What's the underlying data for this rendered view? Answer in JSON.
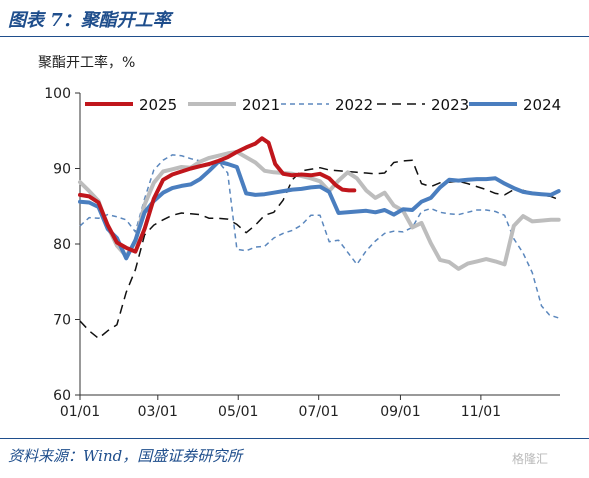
{
  "header": {
    "title": "图表 7：聚酯开工率"
  },
  "footer": {
    "source": "资料来源：Wind，国盛证券研究所",
    "watermark": "格隆汇"
  },
  "chart_data": {
    "type": "line",
    "ylabel": "聚酯开工率，%",
    "xlabel": "",
    "ylim": [
      60,
      100
    ],
    "yticks": [
      60,
      70,
      80,
      90,
      100
    ],
    "xlim": [
      1,
      365
    ],
    "xticks": [
      {
        "day": 1,
        "label": "01/01"
      },
      {
        "day": 60,
        "label": "03/01"
      },
      {
        "day": 121,
        "label": "05/01"
      },
      {
        "day": 182,
        "label": "07/01"
      },
      {
        "day": 244,
        "label": "09/01"
      },
      {
        "day": 305,
        "label": "11/01"
      }
    ],
    "legend_position": "top",
    "series": [
      {
        "name": "2025",
        "color": "#c0161c",
        "style": "solid",
        "width": 4,
        "points": [
          [
            1,
            86.5
          ],
          [
            8,
            86.3
          ],
          [
            15,
            85.5
          ],
          [
            22,
            82.5
          ],
          [
            29,
            80.2
          ],
          [
            36,
            79.5
          ],
          [
            43,
            79.0
          ],
          [
            50,
            82.0
          ],
          [
            57,
            86.0
          ],
          [
            64,
            88.5
          ],
          [
            71,
            89.2
          ],
          [
            78,
            89.6
          ],
          [
            85,
            90.0
          ],
          [
            92,
            90.3
          ],
          [
            99,
            90.6
          ],
          [
            106,
            91.0
          ],
          [
            113,
            91.5
          ],
          [
            120,
            92.2
          ],
          [
            127,
            92.8
          ],
          [
            134,
            93.3
          ],
          [
            139,
            94.0
          ],
          [
            144,
            93.4
          ],
          [
            149,
            90.6
          ],
          [
            155,
            89.3
          ],
          [
            162,
            89.1
          ],
          [
            169,
            89.2
          ],
          [
            176,
            89.1
          ],
          [
            183,
            89.3
          ],
          [
            190,
            88.7
          ],
          [
            195,
            87.8
          ],
          [
            200,
            87.2
          ],
          [
            205,
            87.1
          ],
          [
            209,
            87.1
          ]
        ]
      },
      {
        "name": "2021",
        "color": "#bdbdbd",
        "style": "solid",
        "width": 4,
        "points": [
          [
            1,
            88.2
          ],
          [
            8,
            87.0
          ],
          [
            15,
            85.7
          ],
          [
            22,
            82.3
          ],
          [
            29,
            79.8
          ],
          [
            36,
            78.4
          ],
          [
            43,
            80.3
          ],
          [
            50,
            85.2
          ],
          [
            57,
            88.1
          ],
          [
            64,
            89.6
          ],
          [
            71,
            89.9
          ],
          [
            78,
            90.2
          ],
          [
            85,
            90.1
          ],
          [
            92,
            90.9
          ],
          [
            99,
            91.4
          ],
          [
            106,
            91.7
          ],
          [
            113,
            92.0
          ],
          [
            120,
            92.2
          ],
          [
            127,
            91.5
          ],
          [
            134,
            90.8
          ],
          [
            141,
            89.7
          ],
          [
            148,
            89.5
          ],
          [
            155,
            89.4
          ],
          [
            162,
            89.3
          ],
          [
            169,
            89.0
          ],
          [
            176,
            88.7
          ],
          [
            183,
            88.3
          ],
          [
            190,
            87.0
          ],
          [
            197,
            88.4
          ],
          [
            204,
            89.5
          ],
          [
            211,
            88.7
          ],
          [
            218,
            87.1
          ],
          [
            225,
            86.1
          ],
          [
            232,
            86.8
          ],
          [
            239,
            85.1
          ],
          [
            246,
            84.4
          ],
          [
            253,
            82.2
          ],
          [
            260,
            82.8
          ],
          [
            267,
            80.1
          ],
          [
            274,
            77.9
          ],
          [
            281,
            77.6
          ],
          [
            288,
            76.7
          ],
          [
            295,
            77.4
          ],
          [
            302,
            77.7
          ],
          [
            309,
            78.0
          ],
          [
            316,
            77.7
          ],
          [
            323,
            77.3
          ],
          [
            330,
            82.4
          ],
          [
            337,
            83.7
          ],
          [
            344,
            83.0
          ],
          [
            351,
            83.1
          ],
          [
            358,
            83.2
          ],
          [
            364,
            83.2
          ]
        ]
      },
      {
        "name": "2022",
        "color": "#5b87bd",
        "style": "dashed",
        "width": 1.5,
        "points": [
          [
            1,
            82.4
          ],
          [
            8,
            83.5
          ],
          [
            15,
            83.4
          ],
          [
            22,
            83.9
          ],
          [
            29,
            83.6
          ],
          [
            36,
            83.2
          ],
          [
            43,
            81.6
          ],
          [
            50,
            86.0
          ],
          [
            57,
            89.8
          ],
          [
            64,
            91.1
          ],
          [
            71,
            91.8
          ],
          [
            78,
            91.7
          ],
          [
            85,
            91.3
          ],
          [
            92,
            91.0
          ],
          [
            99,
            90.4
          ],
          [
            106,
            90.9
          ],
          [
            113,
            89.4
          ],
          [
            120,
            79.3
          ],
          [
            127,
            79.1
          ],
          [
            134,
            79.6
          ],
          [
            141,
            79.7
          ],
          [
            148,
            80.8
          ],
          [
            155,
            81.4
          ],
          [
            162,
            81.8
          ],
          [
            169,
            82.5
          ],
          [
            176,
            83.8
          ],
          [
            183,
            83.8
          ],
          [
            190,
            80.3
          ],
          [
            197,
            80.5
          ],
          [
            204,
            78.9
          ],
          [
            211,
            77.3
          ],
          [
            218,
            79.1
          ],
          [
            225,
            80.4
          ],
          [
            232,
            81.4
          ],
          [
            239,
            81.7
          ],
          [
            246,
            81.6
          ],
          [
            253,
            82.2
          ],
          [
            260,
            84.3
          ],
          [
            267,
            84.7
          ],
          [
            274,
            84.2
          ],
          [
            281,
            84.0
          ],
          [
            288,
            83.9
          ],
          [
            295,
            84.2
          ],
          [
            302,
            84.5
          ],
          [
            309,
            84.5
          ],
          [
            316,
            84.3
          ],
          [
            323,
            83.8
          ],
          [
            330,
            80.7
          ],
          [
            337,
            78.8
          ],
          [
            344,
            76.2
          ],
          [
            351,
            71.8
          ],
          [
            357,
            70.6
          ],
          [
            364,
            70.2
          ]
        ]
      },
      {
        "name": "2023",
        "color": "#111111",
        "style": "dashed",
        "width": 1.5,
        "points": [
          [
            1,
            69.8
          ],
          [
            8,
            68.5
          ],
          [
            15,
            67.5
          ],
          [
            22,
            68.5
          ],
          [
            29,
            69.3
          ],
          [
            36,
            73.6
          ],
          [
            43,
            76.6
          ],
          [
            50,
            81.2
          ],
          [
            57,
            82.5
          ],
          [
            64,
            83.2
          ],
          [
            71,
            83.8
          ],
          [
            78,
            84.1
          ],
          [
            85,
            84.0
          ],
          [
            92,
            83.9
          ],
          [
            99,
            83.4
          ],
          [
            106,
            83.4
          ],
          [
            113,
            83.3
          ],
          [
            120,
            82.6
          ],
          [
            127,
            81.5
          ],
          [
            134,
            82.5
          ],
          [
            141,
            83.8
          ],
          [
            148,
            84.2
          ],
          [
            155,
            85.8
          ],
          [
            162,
            88.5
          ],
          [
            169,
            89.7
          ],
          [
            176,
            89.9
          ],
          [
            183,
            90.1
          ],
          [
            190,
            89.8
          ],
          [
            197,
            89.7
          ],
          [
            204,
            89.6
          ],
          [
            211,
            89.5
          ],
          [
            218,
            89.4
          ],
          [
            225,
            89.3
          ],
          [
            232,
            89.4
          ],
          [
            239,
            90.8
          ],
          [
            246,
            91.0
          ],
          [
            253,
            91.1
          ],
          [
            260,
            88.0
          ],
          [
            267,
            87.6
          ],
          [
            274,
            88.1
          ],
          [
            281,
            88.2
          ],
          [
            288,
            88.3
          ],
          [
            295,
            88.0
          ],
          [
            302,
            87.6
          ],
          [
            309,
            87.2
          ],
          [
            316,
            86.7
          ],
          [
            323,
            86.5
          ],
          [
            330,
            87.2
          ],
          [
            337,
            87.1
          ],
          [
            344,
            86.8
          ],
          [
            351,
            86.5
          ],
          [
            358,
            86.3
          ],
          [
            364,
            85.9
          ]
        ]
      },
      {
        "name": "2024",
        "color": "#4a7ebf",
        "style": "solid",
        "width": 4,
        "points": [
          [
            1,
            85.6
          ],
          [
            8,
            85.5
          ],
          [
            15,
            84.9
          ],
          [
            22,
            82.0
          ],
          [
            29,
            80.8
          ],
          [
            36,
            78.1
          ],
          [
            43,
            80.5
          ],
          [
            50,
            84.2
          ],
          [
            57,
            85.7
          ],
          [
            64,
            86.8
          ],
          [
            71,
            87.4
          ],
          [
            78,
            87.7
          ],
          [
            85,
            87.9
          ],
          [
            92,
            88.6
          ],
          [
            99,
            89.7
          ],
          [
            106,
            90.9
          ],
          [
            113,
            90.6
          ],
          [
            120,
            90.2
          ],
          [
            127,
            86.7
          ],
          [
            134,
            86.5
          ],
          [
            141,
            86.6
          ],
          [
            148,
            86.8
          ],
          [
            155,
            87.0
          ],
          [
            162,
            87.2
          ],
          [
            169,
            87.3
          ],
          [
            176,
            87.5
          ],
          [
            183,
            87.6
          ],
          [
            190,
            86.9
          ],
          [
            197,
            84.1
          ],
          [
            204,
            84.2
          ],
          [
            211,
            84.3
          ],
          [
            218,
            84.4
          ],
          [
            225,
            84.2
          ],
          [
            232,
            84.5
          ],
          [
            239,
            83.9
          ],
          [
            246,
            84.6
          ],
          [
            253,
            84.5
          ],
          [
            260,
            85.6
          ],
          [
            267,
            86.1
          ],
          [
            274,
            87.5
          ],
          [
            281,
            88.5
          ],
          [
            288,
            88.4
          ],
          [
            295,
            88.5
          ],
          [
            302,
            88.6
          ],
          [
            309,
            88.6
          ],
          [
            316,
            88.7
          ],
          [
            323,
            88.0
          ],
          [
            330,
            87.4
          ],
          [
            337,
            86.9
          ],
          [
            344,
            86.7
          ],
          [
            351,
            86.6
          ],
          [
            358,
            86.5
          ],
          [
            364,
            87.0
          ]
        ]
      }
    ]
  }
}
